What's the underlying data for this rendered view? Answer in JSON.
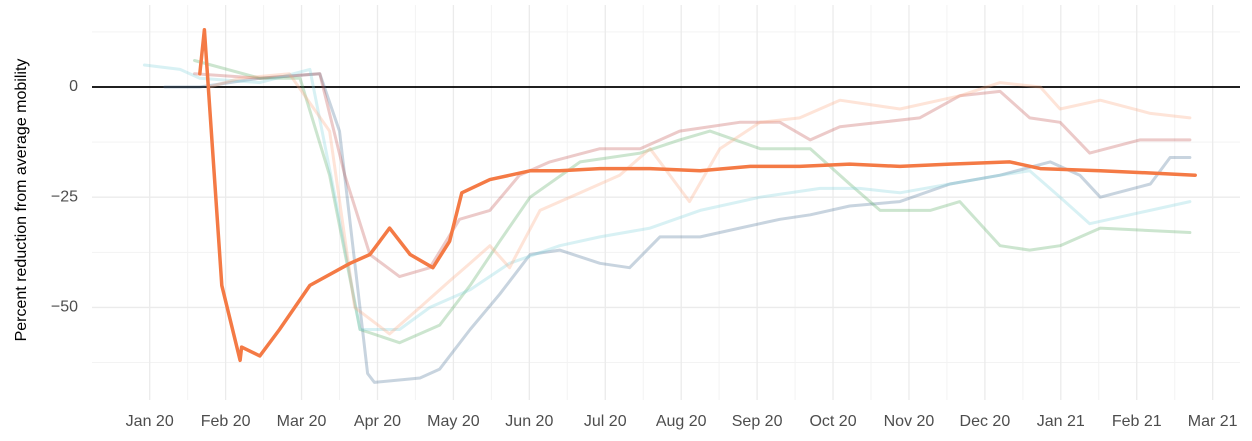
{
  "chart_data": {
    "type": "line",
    "ylabel": "Percent reduction from average mobility",
    "xlim": [
      -0.76,
      14.36
    ],
    "xticks": [
      {
        "value": 0,
        "label": "Jan 20"
      },
      {
        "value": 1,
        "label": "Feb 20"
      },
      {
        "value": 2,
        "label": "Mar 20"
      },
      {
        "value": 3,
        "label": "Apr 20"
      },
      {
        "value": 4,
        "label": "May 20"
      },
      {
        "value": 5,
        "label": "Jun 20"
      },
      {
        "value": 6,
        "label": "Jul 20"
      },
      {
        "value": 7,
        "label": "Aug 20"
      },
      {
        "value": 8,
        "label": "Sep 20"
      },
      {
        "value": 9,
        "label": "Oct 20"
      },
      {
        "value": 10,
        "label": "Nov 20"
      },
      {
        "value": 11,
        "label": "Dec 20"
      },
      {
        "value": 12,
        "label": "Jan 21"
      },
      {
        "value": 13,
        "label": "Feb 21"
      },
      {
        "value": 14,
        "label": "Mar 21"
      }
    ],
    "ylim": [
      -71,
      18.6
    ],
    "yticks": [
      {
        "value": 0,
        "label": "0"
      },
      {
        "value": -25,
        "label": "−25"
      },
      {
        "value": -50,
        "label": "−50"
      }
    ],
    "grid": true,
    "hline": 0,
    "series": [
      {
        "color": "#4a6f96",
        "opacity": 0.3,
        "x": [
          0.2,
          0.66,
          1.45,
          2.24,
          2.5,
          2.87,
          2.96,
          3.56,
          3.82,
          4.22,
          4.61,
          5.01,
          5.4,
          5.93,
          6.32,
          6.72,
          7.25,
          7.77,
          8.3,
          8.7,
          9.22,
          9.88,
          10.54,
          11.2,
          11.86,
          12.25,
          12.52,
          13.18,
          13.44,
          13.7
        ],
        "values": [
          0,
          0,
          2,
          3,
          -10,
          -65,
          -67,
          -66,
          -64,
          -55,
          -47,
          -38,
          -37,
          -40,
          -41,
          -34,
          -34,
          -32,
          -30,
          -29,
          -27,
          -26,
          -22,
          -20,
          -17,
          -20,
          -25,
          -22,
          -16,
          -16
        ]
      },
      {
        "color": "#c0504d",
        "opacity": 0.3,
        "x": [
          0.59,
          1.45,
          2.24,
          2.57,
          2.9,
          3.29,
          3.69,
          4.08,
          4.48,
          4.87,
          5.27,
          5.93,
          6.46,
          6.98,
          7.77,
          8.3,
          8.7,
          9.09,
          9.62,
          10.14,
          10.67,
          11.2,
          11.59,
          11.99,
          12.38,
          13.04,
          13.7
        ],
        "values": [
          3,
          2,
          3,
          -20,
          -38,
          -43,
          -41,
          -30,
          -28,
          -20,
          -17,
          -14,
          -14,
          -10,
          -8,
          -8,
          -12,
          -9,
          -8,
          -7,
          -2,
          -1,
          -7,
          -8,
          -15,
          -12,
          -12
        ]
      },
      {
        "color": "#55a860",
        "opacity": 0.3,
        "x": [
          0.59,
          1.45,
          1.98,
          2.37,
          2.77,
          3.29,
          3.82,
          4.22,
          4.61,
          5.01,
          5.67,
          6.46,
          6.98,
          7.38,
          8.04,
          8.7,
          9.22,
          9.62,
          10.28,
          10.67,
          11.2,
          11.59,
          11.99,
          12.52,
          13.7
        ],
        "values": [
          6,
          2,
          2,
          -20,
          -55,
          -58,
          -54,
          -45,
          -35,
          -25,
          -17,
          -15,
          -12,
          -10,
          -14,
          -14,
          -22,
          -28,
          -28,
          -26,
          -36,
          -37,
          -36,
          -32,
          -33
        ]
      },
      {
        "color": "#7fcfdc",
        "opacity": 0.3,
        "x": [
          -0.07,
          0.4,
          0.66,
          1.45,
          2.11,
          2.5,
          2.77,
          3.29,
          3.69,
          4.22,
          4.74,
          5.4,
          5.93,
          6.59,
          7.25,
          8.04,
          8.83,
          9.35,
          9.88,
          10.54,
          11.2,
          11.59,
          11.99,
          12.38,
          12.91,
          13.7
        ],
        "values": [
          5,
          4,
          2,
          1,
          4,
          -30,
          -55,
          -55,
          -50,
          -46,
          -40,
          -36,
          -34,
          -32,
          -28,
          -25,
          -23,
          -23,
          -24,
          -22,
          -20,
          -19,
          -25,
          -31,
          -29,
          -26
        ]
      },
      {
        "color": "#fca77e",
        "opacity": 0.3,
        "x": [
          0.79,
          1.19,
          1.84,
          2.37,
          2.7,
          3.16,
          3.56,
          3.95,
          4.22,
          4.48,
          4.74,
          5.14,
          5.67,
          6.19,
          6.59,
          7.11,
          7.51,
          8.04,
          8.56,
          9.09,
          9.88,
          10.67,
          11.2,
          11.73,
          11.99,
          12.52,
          13.18,
          13.7
        ],
        "values": [
          0,
          2,
          3,
          -10,
          -50,
          -56,
          -50,
          -44,
          -40,
          -36,
          -41,
          -28,
          -24,
          -20,
          -14,
          -26,
          -14,
          -8,
          -7,
          -3,
          -5,
          -2,
          1,
          0,
          -5,
          -3,
          -6,
          -7
        ]
      },
      {
        "color": "#f47a45",
        "opacity": 1,
        "width": 3.5,
        "x": [
          0.66,
          0.72,
          0.95,
          1.19,
          1.21,
          1.45,
          1.71,
          2.11,
          2.64,
          2.9,
          3.16,
          3.43,
          3.73,
          3.95,
          4.11,
          4.48,
          5.01,
          5.4,
          5.93,
          6.59,
          7.25,
          7.91,
          8.56,
          9.22,
          9.88,
          10.54,
          11.33,
          11.73,
          12.52,
          13.18,
          13.77
        ],
        "values": [
          3,
          13,
          -45,
          -62,
          -59,
          -61,
          -55,
          -45,
          -40,
          -38,
          -32,
          -38,
          -41,
          -35,
          -24,
          -21,
          -19,
          -19,
          -18.5,
          -18.5,
          -19,
          -18,
          -18,
          -17.5,
          -18,
          -17.5,
          -17,
          -18.5,
          -19,
          -19.5,
          -20
        ]
      }
    ]
  }
}
